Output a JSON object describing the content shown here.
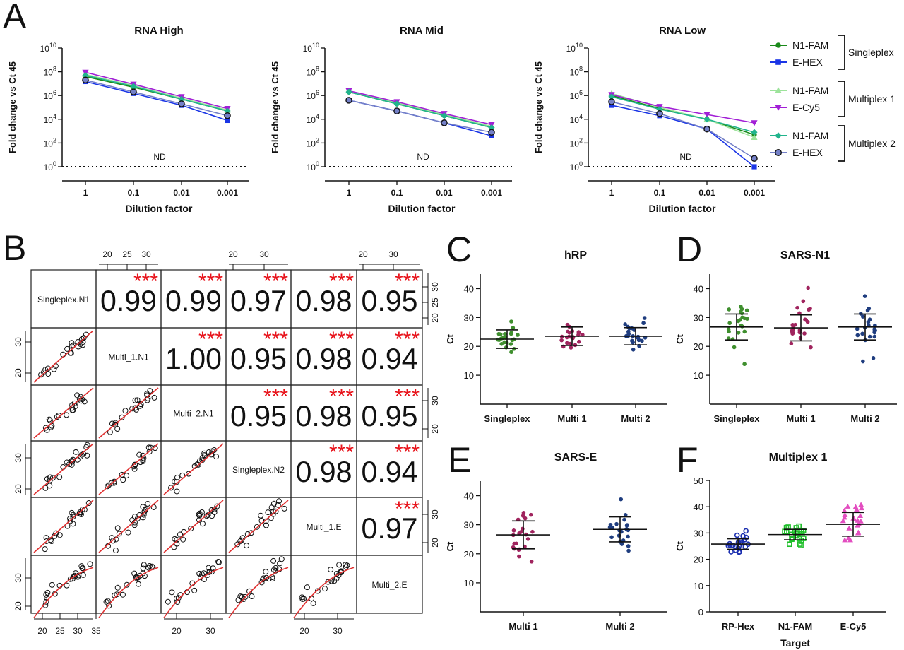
{
  "panel_letters": {
    "A": "A",
    "B": "B",
    "C": "C",
    "D": "D",
    "E": "E",
    "F": "F"
  },
  "colors": {
    "singleplex_n1": "#1a8a1a",
    "singleplex_e": "#1a35e6",
    "multiplex1_n1": "#9de39b",
    "multiplex1_e": "#a21fd6",
    "multiplex2_n1": "#21b48c",
    "multiplex2_e": "#7480c8",
    "fit_line": "#e03030",
    "stars": "#e8131b",
    "c_singleplex": "#3f8f2e",
    "c_multi1": "#a0245e",
    "c_multi2": "#1f3d7f",
    "f_rp": "#1b2fb0",
    "f_n1": "#1fbf2a",
    "f_e": "#e34ec0"
  },
  "legend": {
    "groups": [
      {
        "name": "Singleplex",
        "items": [
          {
            "label": "N1-FAM",
            "symbol": "circle",
            "color": "#1a8a1a"
          },
          {
            "label": "E-HEX",
            "symbol": "square",
            "color": "#1a35e6"
          }
        ]
      },
      {
        "name": "Multiplex 1",
        "items": [
          {
            "label": "N1-FAM",
            "symbol": "triangle-up",
            "color": "#9de39b"
          },
          {
            "label": "E-Cy5",
            "symbol": "triangle-down",
            "color": "#a21fd6"
          }
        ]
      },
      {
        "name": "Multiplex 2",
        "items": [
          {
            "label": "N1-FAM",
            "symbol": "diamond",
            "color": "#21b48c"
          },
          {
            "label": "E-HEX",
            "symbol": "circle-outline",
            "color": "#7480c8"
          }
        ]
      }
    ]
  },
  "chart_data": [
    {
      "panel": "A",
      "type": "line",
      "title": "RNA High",
      "xlabel": "Dilution factor",
      "ylabel": "Fold change vs Ct 45",
      "x": [
        "1",
        "0.1",
        "0.01",
        "0.001"
      ],
      "yscale": "log10",
      "ylim": [
        1,
        10000000000
      ],
      "yticks": [
        {
          "base": "10",
          "exp": "0"
        },
        {
          "base": "10",
          "exp": "2"
        },
        {
          "base": "10",
          "exp": "4"
        },
        {
          "base": "10",
          "exp": "6"
        },
        {
          "base": "10",
          "exp": "8"
        },
        {
          "base": "10",
          "exp": "10"
        }
      ],
      "annotation": "ND",
      "series": [
        {
          "name": "Singleplex N1-FAM",
          "values": [
            40000000,
            5000000,
            500000,
            50000
          ]
        },
        {
          "name": "Singleplex E-HEX",
          "values": [
            15000000,
            1500000,
            150000,
            8000
          ]
        },
        {
          "name": "Multiplex 1 N1-FAM",
          "values": [
            60000000,
            7000000,
            600000,
            60000
          ]
        },
        {
          "name": "Multiplex 1 E-Cy5",
          "values": [
            90000000,
            9000000,
            800000,
            80000
          ]
        },
        {
          "name": "Multiplex 2 N1-FAM",
          "values": [
            50000000,
            6000000,
            500000,
            50000
          ]
        },
        {
          "name": "Multiplex 2 E-HEX",
          "values": [
            20000000,
            2000000,
            200000,
            20000
          ]
        }
      ]
    },
    {
      "panel": "A",
      "type": "line",
      "title": "RNA Mid",
      "xlabel": "Dilution factor",
      "ylabel": "Fold change vs Ct 45",
      "x": [
        "1",
        "0.1",
        "0.01",
        "0.001"
      ],
      "yscale": "log10",
      "ylim": [
        1,
        10000000000
      ],
      "yticks": [
        {
          "base": "10",
          "exp": "0"
        },
        {
          "base": "10",
          "exp": "2"
        },
        {
          "base": "10",
          "exp": "4"
        },
        {
          "base": "10",
          "exp": "6"
        },
        {
          "base": "10",
          "exp": "8"
        },
        {
          "base": "10",
          "exp": "10"
        }
      ],
      "annotation": "ND",
      "series": [
        {
          "name": "Singleplex N1-FAM",
          "values": [
            2000000,
            200000,
            20000,
            2000
          ]
        },
        {
          "name": "Singleplex E-HEX",
          "values": [
            400000,
            50000,
            5000,
            400
          ]
        },
        {
          "name": "Multiplex 1 N1-FAM",
          "values": [
            2500000,
            250000,
            25000,
            2500
          ]
        },
        {
          "name": "Multiplex 1 E-Cy5",
          "values": [
            2500000,
            300000,
            30000,
            3500
          ]
        },
        {
          "name": "Multiplex 2 N1-FAM",
          "values": [
            2000000,
            200000,
            20000,
            2000
          ]
        },
        {
          "name": "Multiplex 2 E-HEX",
          "values": [
            400000,
            50000,
            5000,
            800
          ]
        }
      ]
    },
    {
      "panel": "A",
      "type": "line",
      "title": "RNA Low",
      "xlabel": "Dilution factor",
      "ylabel": "Fold change vs Ct 45",
      "x": [
        "1",
        "0.1",
        "0.01",
        "0.001"
      ],
      "yscale": "log10",
      "ylim": [
        1,
        10000000000
      ],
      "yticks": [
        {
          "base": "10",
          "exp": "0"
        },
        {
          "base": "10",
          "exp": "2"
        },
        {
          "base": "10",
          "exp": "4"
        },
        {
          "base": "10",
          "exp": "6"
        },
        {
          "base": "10",
          "exp": "8"
        },
        {
          "base": "10",
          "exp": "10"
        }
      ],
      "annotation": "ND",
      "series": [
        {
          "name": "Singleplex N1-FAM",
          "values": [
            1000000,
            80000,
            10000,
            500
          ]
        },
        {
          "name": "Singleplex E-HEX",
          "values": [
            150000,
            20000,
            1500,
            1
          ]
        },
        {
          "name": "Multiplex 1 N1-FAM",
          "values": [
            1500000,
            100000,
            10000,
            300
          ]
        },
        {
          "name": "Multiplex 1 E-Cy5",
          "values": [
            1200000,
            120000,
            25000,
            5000
          ]
        },
        {
          "name": "Multiplex 2 N1-FAM",
          "values": [
            800000,
            70000,
            10000,
            800
          ]
        },
        {
          "name": "Multiplex 2 E-HEX",
          "values": [
            300000,
            30000,
            1500,
            5
          ]
        }
      ]
    },
    {
      "panel": "B",
      "type": "scatter",
      "labels": [
        "Singleplex.N1",
        "Multi_1.N1",
        "Multi_2.N1",
        "Singleplex.N2",
        "Multi_1.E",
        "Multi_2.E"
      ],
      "correlations": [
        {
          "row": 0,
          "col": 1,
          "r": "0.99",
          "stars": "***"
        },
        {
          "row": 0,
          "col": 2,
          "r": "0.99",
          "stars": "***"
        },
        {
          "row": 0,
          "col": 3,
          "r": "0.97",
          "stars": "***"
        },
        {
          "row": 0,
          "col": 4,
          "r": "0.98",
          "stars": "***"
        },
        {
          "row": 0,
          "col": 5,
          "r": "0.95",
          "stars": "***"
        },
        {
          "row": 1,
          "col": 2,
          "r": "1.00",
          "stars": "***"
        },
        {
          "row": 1,
          "col": 3,
          "r": "0.95",
          "stars": "***"
        },
        {
          "row": 1,
          "col": 4,
          "r": "0.98",
          "stars": "***"
        },
        {
          "row": 1,
          "col": 5,
          "r": "0.94",
          "stars": "***"
        },
        {
          "row": 2,
          "col": 3,
          "r": "0.95",
          "stars": "***"
        },
        {
          "row": 2,
          "col": 4,
          "r": "0.98",
          "stars": "***"
        },
        {
          "row": 2,
          "col": 5,
          "r": "0.95",
          "stars": "***"
        },
        {
          "row": 3,
          "col": 4,
          "r": "0.98",
          "stars": "***"
        },
        {
          "row": 3,
          "col": 5,
          "r": "0.94",
          "stars": "***"
        },
        {
          "row": 4,
          "col": 5,
          "r": "0.97",
          "stars": "***"
        }
      ],
      "top_ticks": [
        "20",
        "25",
        "30"
      ],
      "top_ticks_short": [
        "20",
        "30"
      ],
      "right_ticks": [
        "30",
        "25",
        "20"
      ],
      "left_ticks": [
        "30",
        "20"
      ],
      "bottom_ticks": [
        "20",
        "25",
        "30",
        "35"
      ],
      "bottom_ticks_short": [
        "20",
        "30"
      ],
      "ct_range": [
        18,
        35
      ]
    },
    {
      "panel": "C",
      "type": "scatter",
      "title": "hRP",
      "ylabel": "Ct",
      "categories": [
        "Singleplex",
        "Multi 1",
        "Multi 2"
      ],
      "ylim": [
        0,
        45
      ],
      "yticks": [
        "10",
        "20",
        "30",
        "40"
      ],
      "series": [
        {
          "mean": 22.5,
          "sd": 3.2
        },
        {
          "mean": 23.5,
          "sd": 3.2
        },
        {
          "mean": 23.5,
          "sd": 3.0
        }
      ]
    },
    {
      "panel": "D",
      "type": "scatter",
      "title": "SARS-N1",
      "ylabel": "Ct",
      "categories": [
        "Singleplex",
        "Multi 1",
        "Multi 2"
      ],
      "ylim": [
        0,
        45
      ],
      "yticks": [
        "10",
        "20",
        "30",
        "40"
      ],
      "series": [
        {
          "mean": 26.7,
          "sd": 4.5
        },
        {
          "mean": 26.4,
          "sd": 4.5
        },
        {
          "mean": 26.7,
          "sd": 4.5
        }
      ]
    },
    {
      "panel": "E",
      "type": "scatter",
      "title": "SARS-E",
      "ylabel": "Ct",
      "categories": [
        "Multi 1",
        "Multi 2"
      ],
      "ylim": [
        0,
        45
      ],
      "yticks": [
        "10",
        "20",
        "30",
        "40"
      ],
      "series": [
        {
          "mean": 26.5,
          "sd": 4.8
        },
        {
          "mean": 28.4,
          "sd": 4.3
        }
      ]
    },
    {
      "panel": "F",
      "type": "scatter",
      "title": "Multiplex 1",
      "ylabel": "Ct",
      "xlabel": "Target",
      "categories": [
        "RP-Hex",
        "N1-FAM",
        "E-Cy5"
      ],
      "ylim": [
        0,
        50
      ],
      "yticks": [
        "0",
        "10",
        "20",
        "30",
        "40",
        "50"
      ],
      "series": [
        {
          "mean": 25.8,
          "sd": 2.0
        },
        {
          "mean": 29.4,
          "sd": 2.0
        },
        {
          "mean": 33.3,
          "sd": 4.5
        }
      ]
    }
  ]
}
